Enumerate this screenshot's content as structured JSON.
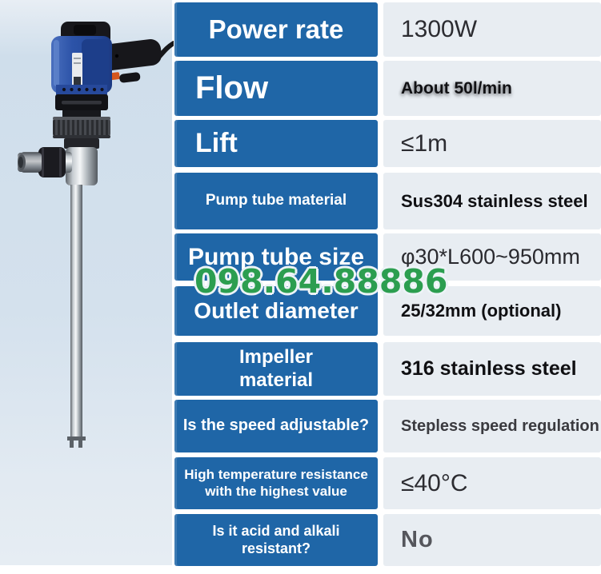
{
  "product_image": {
    "name": "electric-drum-pump",
    "description_parts": [
      "blue motor head",
      "black handle with power cord",
      "knurled collar",
      "stainless steel outlet",
      "stainless steel suction tube"
    ]
  },
  "watermark": {
    "text": "098.64.88886",
    "color": "#2c9e50"
  },
  "colors": {
    "label_bg": "#1f66a7",
    "value_bg": "#e8edf2",
    "panel_bg": "#d4e1ed",
    "watermark_green": "#2c9e50"
  },
  "spec_table": {
    "rows": [
      {
        "label": "Power rate",
        "value": "1300W"
      },
      {
        "label": "Flow",
        "value": "About 50l/min"
      },
      {
        "label": "Lift",
        "value": "≤1m"
      },
      {
        "label": "Pump tube material",
        "value": "Sus304 stainless steel"
      },
      {
        "label": "Pump tube size",
        "value": "φ30*L600~950mm"
      },
      {
        "label": "Outlet diameter",
        "value": "25/32mm (optional)"
      },
      {
        "label": "Impeller material",
        "value": "316 stainless steel"
      },
      {
        "label": "Is the speed adjustable?",
        "value": "Stepless speed regulation"
      },
      {
        "label": "High temperature resistance with the highest value",
        "value": "≤40°C"
      },
      {
        "label": "Is it acid and alkali resistant?",
        "value": "No"
      }
    ]
  }
}
